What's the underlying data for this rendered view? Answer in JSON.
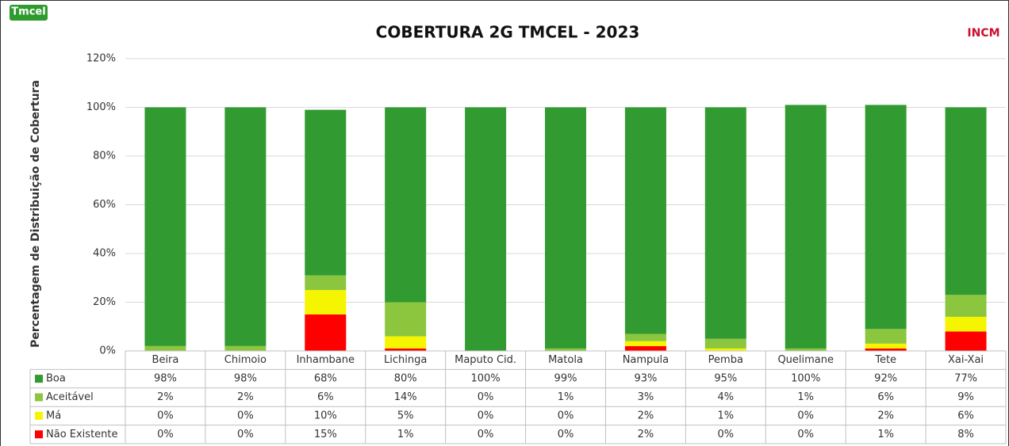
{
  "logos": [
    "Tmcel",
    "INCM"
  ],
  "chart_data": {
    "type": "bar",
    "stacked": true,
    "title": "COBERTURA 2G TMCEL - 2023",
    "y_label": "Percentagem de Distribuição de Cobertura",
    "categories": [
      "Beira",
      "Chimoio",
      "Inhambane",
      "Lichinga",
      "Maputo Cid.",
      "Matola",
      "Nampula",
      "Pemba",
      "Quelimane",
      "Tete",
      "Xai-Xai"
    ],
    "series": [
      {
        "name": "Boa",
        "color": "#319b31",
        "values": [
          98,
          98,
          68,
          80,
          100,
          99,
          93,
          95,
          100,
          92,
          77
        ],
        "value_labels": [
          "98%",
          "98%",
          "68%",
          "80%",
          "100%",
          "99%",
          "93%",
          "95%",
          "100%",
          "92%",
          "77%"
        ]
      },
      {
        "name": "Aceitável",
        "color": "#8cc63f",
        "values": [
          2,
          2,
          6,
          14,
          0,
          1,
          3,
          4,
          1,
          6,
          9
        ],
        "value_labels": [
          "2%",
          "2%",
          "6%",
          "14%",
          "0%",
          "1%",
          "3%",
          "4%",
          "1%",
          "6%",
          "9%"
        ]
      },
      {
        "name": "Má",
        "color": "#f5f500",
        "values": [
          0,
          0,
          10,
          5,
          0,
          0,
          2,
          1,
          0,
          2,
          6
        ],
        "value_labels": [
          "0%",
          "0%",
          "10%",
          "5%",
          "0%",
          "0%",
          "2%",
          "1%",
          "0%",
          "2%",
          "6%"
        ]
      },
      {
        "name": "Não Existente",
        "color": "#ff0000",
        "values": [
          0,
          0,
          15,
          1,
          0,
          0,
          2,
          0,
          0,
          1,
          8
        ],
        "value_labels": [
          "0%",
          "0%",
          "15%",
          "1%",
          "0%",
          "0%",
          "2%",
          "0%",
          "0%",
          "1%",
          "8%"
        ]
      }
    ],
    "ylim": [
      0,
      120
    ],
    "yticks": [
      {
        "value": 0,
        "label": "0%"
      },
      {
        "value": 20,
        "label": "20%"
      },
      {
        "value": 40,
        "label": "40%"
      },
      {
        "value": 60,
        "label": "60%"
      },
      {
        "value": 80,
        "label": "80%"
      },
      {
        "value": 100,
        "label": "100%"
      },
      {
        "value": 120,
        "label": "120%"
      }
    ],
    "grid": true
  }
}
